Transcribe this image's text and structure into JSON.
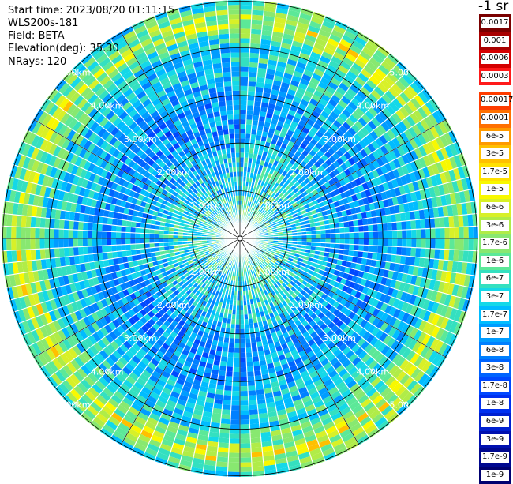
{
  "header": {
    "start_time": "Start time: 2023/08/20 01:11:15",
    "device": "WLS200s-181",
    "field": "Field: BETA",
    "elevation": "Elevation(deg): 35.30",
    "nrays": "NRays: 120"
  },
  "colorbar": {
    "unit_label": "-1 sr",
    "upper_ticks": [
      "0.0017",
      "0.001",
      "0.0006",
      "0.0003"
    ],
    "upper_colors": [
      "#7a0000",
      "#a80000",
      "#d40000",
      "#ff1a1a"
    ],
    "lower_ticks": [
      "0.00017",
      "0.0001",
      "6e-5",
      "3e-5",
      "1.7e-5",
      "1e-5",
      "6e-6",
      "3e-6",
      "1.7e-6",
      "1e-6",
      "6e-7",
      "3e-7",
      "1.7e-7",
      "1e-7",
      "6e-8",
      "3e-8",
      "1.7e-8",
      "1e-8",
      "6e-9",
      "3e-9",
      "1.7e-9",
      "1e-9"
    ],
    "lower_colors": [
      "#ff3c00",
      "#ff7000",
      "#ff9a00",
      "#ffc000",
      "#ffe000",
      "#f8f800",
      "#d8f028",
      "#b0ec48",
      "#88e870",
      "#5ce898",
      "#34e0c0",
      "#14d8e8",
      "#00bcff",
      "#009cff",
      "#0080ff",
      "#0064ff",
      "#0048ff",
      "#0030f0",
      "#0020d0",
      "#0010b0",
      "#000890",
      "#000070"
    ]
  },
  "chart_data": {
    "type": "heatmap",
    "projection": "polar (PPI scan)",
    "n_rays": 120,
    "max_range_km": 5.0,
    "range_ring_labels": [
      "1.00km",
      "2.00km",
      "3.00km",
      "4.00km",
      "5.00km"
    ],
    "range_rings_km": [
      1,
      2,
      3,
      4,
      5
    ],
    "azimuth_grid_deg": [
      0,
      30,
      60,
      90,
      120,
      150,
      180,
      210,
      240,
      270,
      300,
      330
    ],
    "value_range": [
      "1e-9",
      "0.0017"
    ],
    "dominant_values": {
      "near_0_2km": "1e-7 to 1.7e-7",
      "2_4km": "3e-8 to 1e-7",
      "ring_near_4_5km": "3e-7 to 1e-6",
      "hotspots_4_5km": "1e-6 to 3e-6"
    }
  }
}
